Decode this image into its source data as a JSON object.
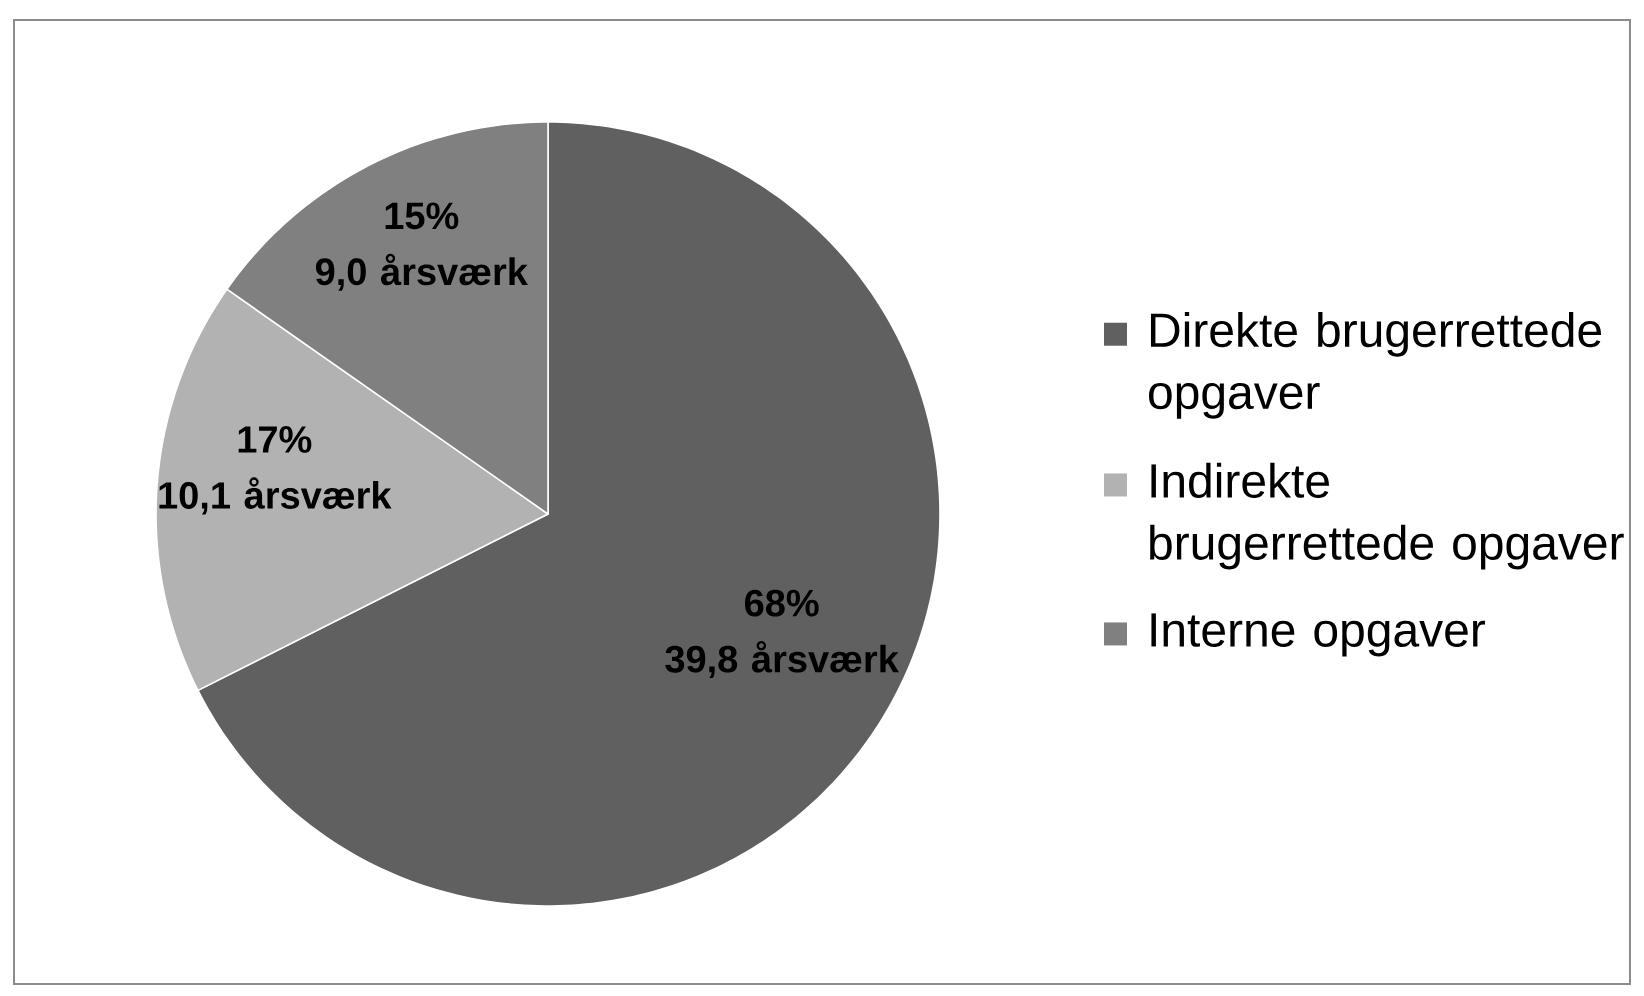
{
  "chart_data": {
    "type": "pie",
    "categories": [
      "Direkte brugerrettede opgaver",
      "Indirekte brugerrettede opgaver",
      "Interne opgaver"
    ],
    "values": [
      39.8,
      10.1,
      9.0
    ],
    "colors": [
      "#606060",
      "#b2b2b2",
      "#808080"
    ],
    "value_labels": [
      "68% 39,8 årsværk",
      "17% 10,1 årsværk",
      "15% 9,0 årsværk"
    ],
    "legend": "right"
  }
}
